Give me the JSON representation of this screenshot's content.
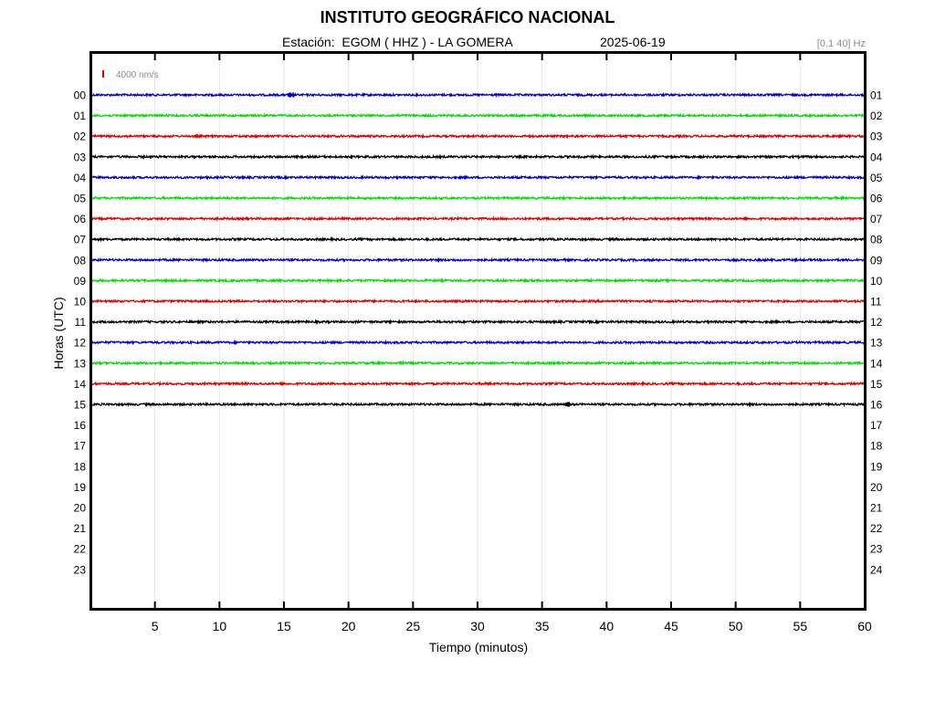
{
  "header": {
    "title": "INSTITUTO GEOGRÁFICO NACIONAL",
    "station_line": "Estación:  EGOM ( HHZ ) - LA GOMERA",
    "date": "2025-06-19",
    "filter": "[0.1 40] Hz"
  },
  "chart_data": {
    "type": "line",
    "title": "INSTITUTO GEOGRÁFICO NACIONAL",
    "xlabel": "Tiempo (minutos)",
    "ylabel": "Horas (UTC)",
    "xlim": [
      0,
      60
    ],
    "x_ticks": [
      5,
      10,
      15,
      20,
      25,
      30,
      35,
      40,
      45,
      50,
      55,
      60
    ],
    "left_hour_labels": [
      "00",
      "01",
      "02",
      "03",
      "04",
      "05",
      "06",
      "07",
      "08",
      "09",
      "10",
      "11",
      "12",
      "13",
      "14",
      "15",
      "16",
      "17",
      "18",
      "19",
      "20",
      "21",
      "22",
      "23"
    ],
    "right_hour_labels": [
      "01",
      "02",
      "03",
      "04",
      "05",
      "06",
      "07",
      "08",
      "09",
      "10",
      "11",
      "12",
      "13",
      "14",
      "15",
      "16",
      "17",
      "18",
      "19",
      "20",
      "21",
      "22",
      "23",
      "24"
    ],
    "scale_label": "4000 nm/s",
    "scale_color": "#dd0000",
    "grid": true,
    "trace_colors": [
      "#0000cc",
      "#00dd00",
      "#dd0000",
      "#000000"
    ],
    "series": [
      {
        "hour": "00",
        "color": "#0000cc",
        "start_min": 0,
        "end_min": 60
      },
      {
        "hour": "01",
        "color": "#00dd00",
        "start_min": 0,
        "end_min": 60
      },
      {
        "hour": "02",
        "color": "#dd0000",
        "start_min": 0,
        "end_min": 60
      },
      {
        "hour": "03",
        "color": "#000000",
        "start_min": 0,
        "end_min": 60
      },
      {
        "hour": "04",
        "color": "#0000cc",
        "start_min": 0,
        "end_min": 60
      },
      {
        "hour": "05",
        "color": "#00dd00",
        "start_min": 0,
        "end_min": 60
      },
      {
        "hour": "06",
        "color": "#dd0000",
        "start_min": 0,
        "end_min": 60
      },
      {
        "hour": "07",
        "color": "#000000",
        "start_min": 0,
        "end_min": 60
      },
      {
        "hour": "08",
        "color": "#0000cc",
        "start_min": 0,
        "end_min": 60
      },
      {
        "hour": "09",
        "color": "#00dd00",
        "start_min": 0,
        "end_min": 60
      },
      {
        "hour": "10",
        "color": "#dd0000",
        "start_min": 0,
        "end_min": 60
      },
      {
        "hour": "11",
        "color": "#000000",
        "start_min": 0,
        "end_min": 60
      },
      {
        "hour": "12",
        "color": "#0000cc",
        "start_min": 0,
        "end_min": 60
      },
      {
        "hour": "13",
        "color": "#00dd00",
        "start_min": 0,
        "end_min": 60
      },
      {
        "hour": "14",
        "color": "#dd0000",
        "start_min": 0,
        "end_min": 60
      },
      {
        "hour": "15",
        "color": "#000000",
        "start_min": 0,
        "end_min": 60
      }
    ],
    "events": [
      {
        "hour": "00",
        "minute": 15.3
      },
      {
        "hour": "15",
        "minute": 36.8
      }
    ]
  }
}
